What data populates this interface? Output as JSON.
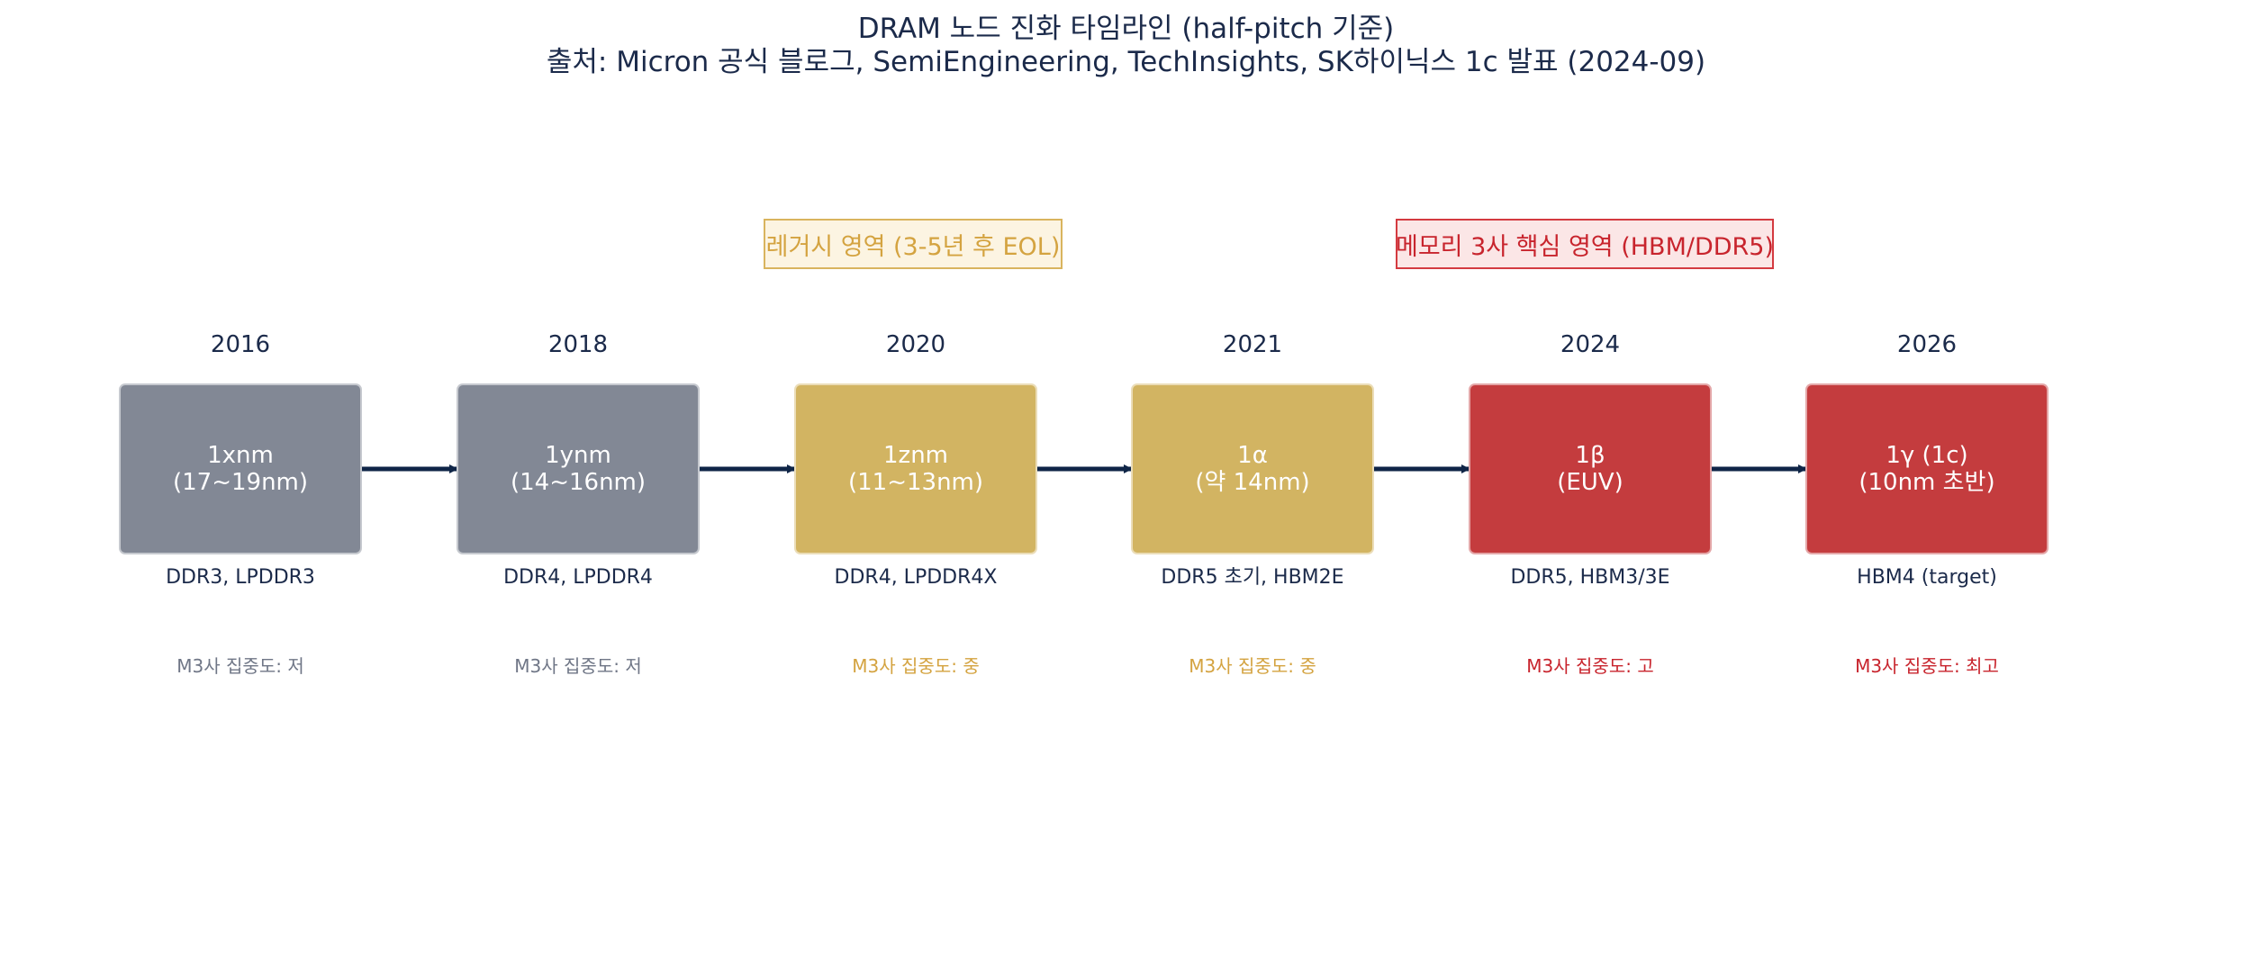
{
  "title": {
    "line1": "DRAM 노드 진화 타임라인 (half-pitch 기준)",
    "line2": "출처: Micron 공식 블로그, SemiEngineering, TechInsights, SK하이닉스 1c 발표 (2024-09)"
  },
  "regions": {
    "legacy": "레거시 영역 (3-5년 후 EOL)",
    "core": "메모리 3사 핵심 영역 (HBM/DDR5)"
  },
  "nodes": [
    {
      "year": "2016",
      "name": "1xnm",
      "size": "(17~19nm)",
      "products": "DDR3, LPDDR3",
      "concentration": "M3사 집중도: 저",
      "category": "legacy-old"
    },
    {
      "year": "2018",
      "name": "1ynm",
      "size": "(14~16nm)",
      "products": "DDR4, LPDDR4",
      "concentration": "M3사 집중도: 저",
      "category": "legacy-old"
    },
    {
      "year": "2020",
      "name": "1znm",
      "size": "(11~13nm)",
      "products": "DDR4, LPDDR4X",
      "concentration": "M3사 집중도: 중",
      "category": "legacy"
    },
    {
      "year": "2021",
      "name": "1α",
      "size": "(약 14nm)",
      "products": "DDR5 초기, HBM2E",
      "concentration": "M3사 집중도: 중",
      "category": "legacy"
    },
    {
      "year": "2024",
      "name": "1β",
      "size": "(EUV)",
      "products": "DDR5, HBM3/3E",
      "concentration": "M3사 집중도: 고",
      "category": "core"
    },
    {
      "year": "2026",
      "name": "1γ (1c)",
      "size": "(10nm 초반)",
      "products": "HBM4 (target)",
      "concentration": "M3사 집중도: 최고",
      "category": "core"
    }
  ],
  "colors": {
    "legacy_old_node": "#828895",
    "legacy_node": "#d2b462",
    "core_node": "#c43c3e",
    "legacy_region_text": "#d4a340",
    "core_region_text": "#c8242d",
    "arrow": "#0f2547",
    "title_text": "#1b2a4a"
  }
}
